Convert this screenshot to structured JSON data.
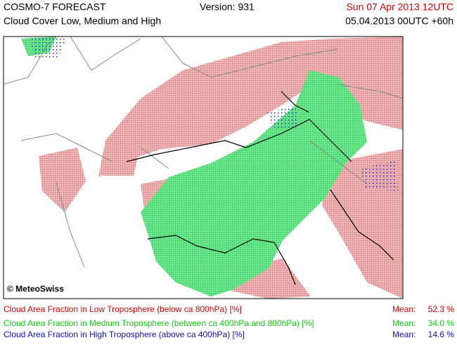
{
  "header": {
    "title": "COSMO-7 FORECAST",
    "subtitle": "Cloud Cover Low, Medium and High",
    "version": "Version: 931",
    "valid_time": "Sun 07 Apr 2013 12UTC",
    "run": "05.04.2013 00UTC +60h"
  },
  "map": {
    "copyright": "© MeteoSwiss"
  },
  "legend": {
    "items": [
      {
        "label": "Cloud Area Fraction in Low Troposphere (below ca 800hPa) [%]",
        "mean_label": "Mean:",
        "mean": "52.3 %",
        "color": "#e00000"
      },
      {
        "label": "Cloud Area Fraction in Medium Troposphere (between ca 400hPa and 800hPa) [%]",
        "mean_label": "Mean:",
        "mean": "34.0 %",
        "color": "#10d010"
      },
      {
        "label": "Cloud Area Fraction in High Troposphere (above ca 400hPa) [%]",
        "mean_label": "Mean:",
        "mean": "14.6 %",
        "color": "#1010d0"
      }
    ]
  }
}
